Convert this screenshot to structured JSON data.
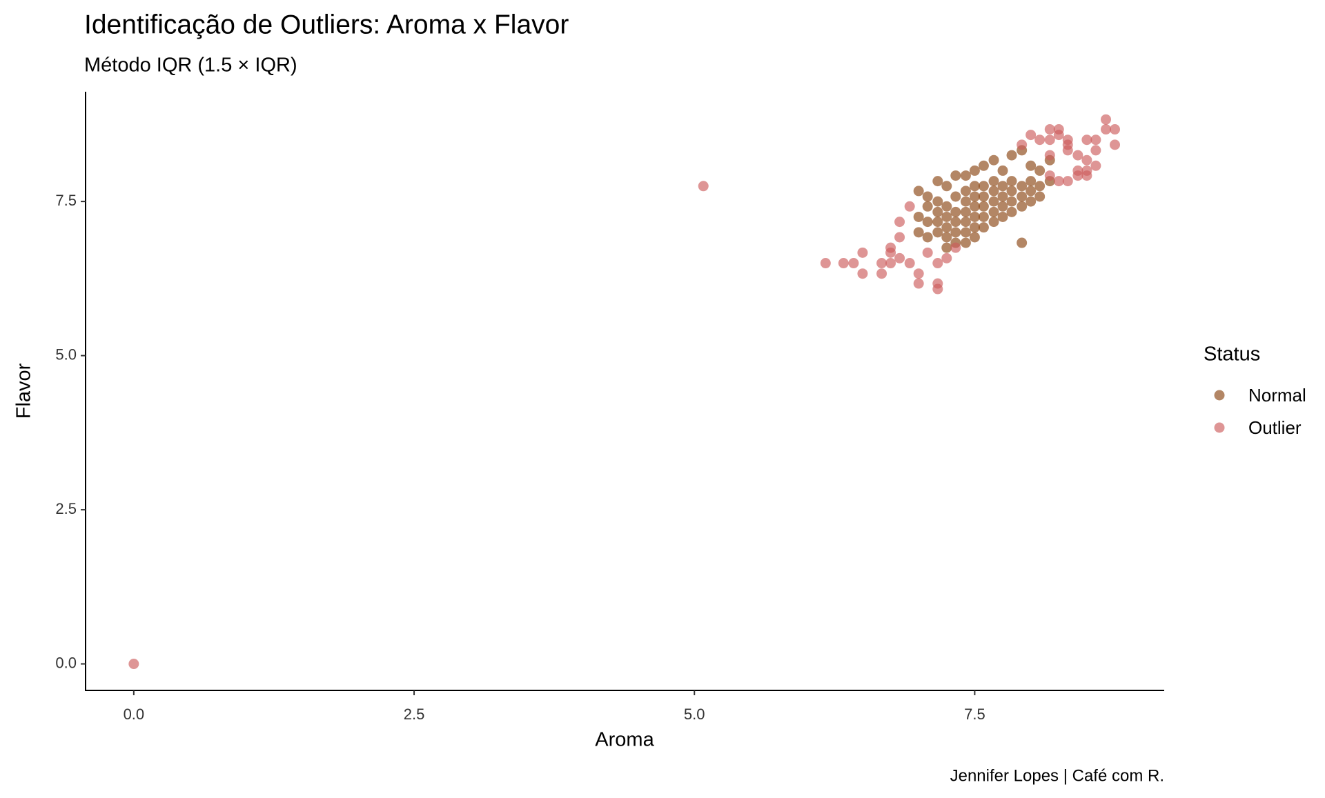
{
  "chart_data": {
    "type": "scatter",
    "title": "Identificação de Outliers: Aroma x Flavor",
    "subtitle": "Método IQR (1.5 × IQR)",
    "caption": "Jennifer Lopes | Café com R.",
    "x_label": "Aroma",
    "y_label": "Flavor",
    "legend_title": "Status",
    "legend": "right",
    "grid": false,
    "xlim": [
      -0.43,
      9.19
    ],
    "xticks": [
      {
        "value": 0,
        "label": "0.0"
      },
      2.5,
      {
        "value": 5,
        "label": "5.0"
      },
      7.5
    ],
    "ylim": [
      -0.43,
      9.28
    ],
    "yticks": [
      {
        "value": 0,
        "label": "0.0"
      },
      2.5,
      {
        "value": 5,
        "label": "5.0"
      },
      7.5
    ],
    "series": [
      {
        "name": "Normal",
        "color": "#8B4513",
        "x": [
          7.0,
          7.0,
          7.0,
          7.08,
          7.08,
          7.08,
          7.08,
          7.17,
          7.17,
          7.17,
          7.17,
          7.17,
          7.25,
          7.25,
          7.25,
          7.25,
          7.25,
          7.33,
          7.33,
          7.33,
          7.33,
          7.33,
          7.33,
          7.42,
          7.42,
          7.42,
          7.42,
          7.42,
          7.42,
          7.5,
          7.5,
          7.5,
          7.5,
          7.5,
          7.5,
          7.58,
          7.58,
          7.58,
          7.58,
          7.58,
          7.58,
          7.67,
          7.67,
          7.67,
          7.67,
          7.67,
          7.67,
          7.75,
          7.75,
          7.75,
          7.75,
          7.75,
          7.83,
          7.83,
          7.83,
          7.83,
          7.83,
          7.92,
          7.92,
          7.92,
          7.92,
          8.0,
          8.0,
          8.0,
          8.0,
          8.08,
          8.08,
          8.08,
          8.17,
          8.17,
          7.92,
          7.5,
          7.42,
          7.25
        ],
        "values": [
          7.0,
          7.25,
          7.67,
          6.92,
          7.17,
          7.42,
          7.58,
          7.0,
          7.17,
          7.33,
          7.5,
          7.83,
          6.92,
          7.08,
          7.25,
          7.42,
          7.75,
          6.83,
          7.0,
          7.17,
          7.33,
          7.58,
          7.92,
          7.0,
          7.17,
          7.33,
          7.5,
          7.67,
          7.92,
          7.08,
          7.25,
          7.42,
          7.58,
          7.75,
          8.0,
          7.08,
          7.25,
          7.42,
          7.58,
          7.75,
          8.08,
          7.17,
          7.33,
          7.5,
          7.67,
          7.83,
          8.17,
          7.25,
          7.42,
          7.58,
          7.75,
          8.0,
          7.33,
          7.5,
          7.67,
          7.83,
          8.25,
          7.42,
          7.58,
          7.75,
          8.33,
          7.5,
          7.67,
          7.83,
          8.08,
          7.58,
          7.75,
          8.0,
          7.83,
          8.17,
          6.83,
          6.92,
          6.83,
          6.75
        ]
      },
      {
        "name": "Outlier",
        "color": "#CD5C5C",
        "x": [
          0,
          5.08,
          6.17,
          6.33,
          6.42,
          6.5,
          6.5,
          6.67,
          6.67,
          6.75,
          6.75,
          6.75,
          6.83,
          6.83,
          6.83,
          6.92,
          6.92,
          7.0,
          7.0,
          7.08,
          7.17,
          7.17,
          7.17,
          7.25,
          7.33,
          8.17,
          8.25,
          8.25,
          8.17,
          8.33,
          8.33,
          8.42,
          8.5,
          8.58,
          8.67,
          8.67,
          8.75,
          8.75,
          8.58,
          8.5,
          8.42,
          8.33,
          8.25,
          8.17,
          8.08,
          8.0,
          7.92,
          8.5,
          8.58,
          8.5,
          8.42,
          8.33,
          8.17
        ],
        "values": [
          0,
          7.75,
          6.5,
          6.5,
          6.5,
          6.67,
          6.33,
          6.33,
          6.5,
          6.5,
          6.67,
          6.75,
          6.58,
          6.92,
          7.17,
          7.42,
          6.5,
          6.33,
          6.17,
          6.67,
          6.08,
          6.17,
          6.5,
          6.58,
          6.75,
          8.5,
          8.58,
          8.67,
          8.67,
          8.5,
          8.42,
          8.25,
          8.5,
          8.5,
          8.83,
          8.67,
          8.67,
          8.42,
          8.33,
          8.0,
          7.92,
          7.83,
          7.83,
          7.92,
          8.5,
          8.58,
          8.42,
          7.92,
          8.08,
          8.17,
          8.0,
          8.33,
          8.25
        ]
      }
    ]
  }
}
